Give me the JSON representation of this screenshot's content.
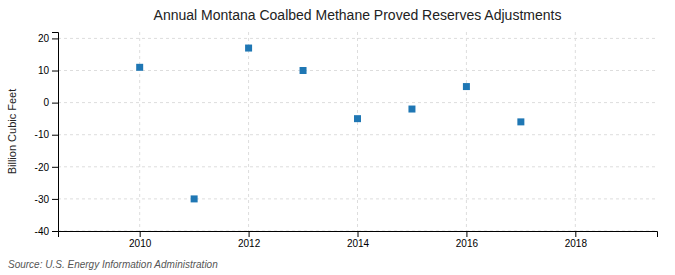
{
  "chart_data": {
    "type": "scatter",
    "title": "Annual Montana Coalbed Methane Proved Reserves Adjustments",
    "y_label": "Billion Cubic Feet",
    "annotations": [
      "Source: U.S. Energy Information Administration"
    ],
    "x": [
      2010,
      2011,
      2012,
      2013,
      2014,
      2015,
      2016,
      2017
    ],
    "values": [
      11,
      -30,
      17,
      10,
      -5,
      -2,
      5,
      -6
    ],
    "xlim": [
      2008.5,
      2019.5
    ],
    "ylim": [
      -40,
      22
    ],
    "xticks": [
      2010,
      2012,
      2014,
      2016,
      2018
    ],
    "yticks": [
      -40,
      -30,
      -20,
      -10,
      0,
      10,
      20
    ],
    "marker": "square",
    "grid": true
  }
}
